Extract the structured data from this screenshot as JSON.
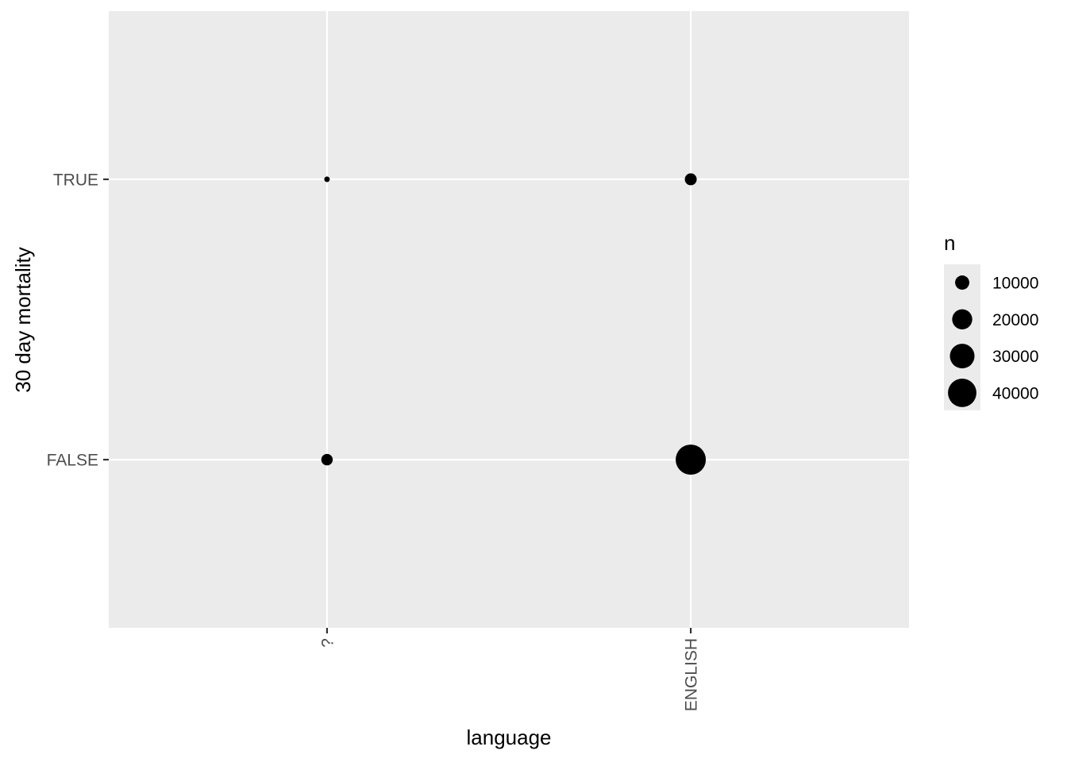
{
  "chart_data": {
    "type": "scatter",
    "xlabel": "language",
    "ylabel": "30 day mortality",
    "x_categories": [
      "?",
      "ENGLISH"
    ],
    "y_categories": [
      "FALSE",
      "TRUE"
    ],
    "size_variable": "n",
    "points": [
      {
        "x": "?",
        "y": "TRUE",
        "n": 700
      },
      {
        "x": "ENGLISH",
        "y": "TRUE",
        "n": 7000
      },
      {
        "x": "?",
        "y": "FALSE",
        "n": 6500
      },
      {
        "x": "ENGLISH",
        "y": "FALSE",
        "n": 45000
      }
    ],
    "legend": {
      "title": "n",
      "breaks": [
        10000,
        20000,
        30000,
        40000
      ],
      "labels": [
        "10000",
        "20000",
        "30000",
        "40000"
      ],
      "placement": "right"
    },
    "grid": true,
    "panel_background": "#ebebeb",
    "grid_color": "#ffffff",
    "point_color": "#000000"
  }
}
